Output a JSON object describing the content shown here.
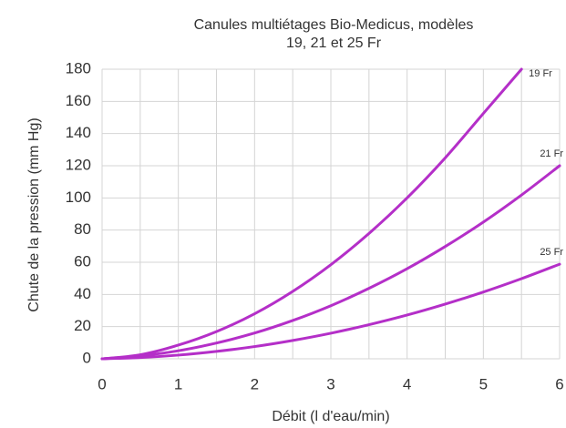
{
  "chart_data": {
    "type": "line",
    "title": [
      "Canules multiétages Bio-Medicus, modèles",
      "19, 21 et 25 Fr"
    ],
    "xlabel": "Débit (l d'eau/min)",
    "ylabel": "Chute de la pression (mm Hg)",
    "x": [
      0,
      0.5,
      1,
      1.5,
      2,
      2.5,
      3,
      3.5,
      4,
      4.5,
      5,
      5.5,
      6
    ],
    "series": [
      {
        "name": "19 Fr",
        "color": "#b42fc8",
        "values": [
          0,
          2.5,
          8.5,
          16.9,
          28,
          41.9,
          58.5,
          77.9,
          100,
          124.9,
          152.5,
          180,
          null
        ]
      },
      {
        "name": "21 Fr",
        "color": "#b42fc8",
        "values": [
          0,
          1.8,
          5,
          9.8,
          16,
          23.8,
          33,
          43.8,
          56,
          69.8,
          85,
          101.8,
          120
        ]
      },
      {
        "name": "25 Fr",
        "color": "#b42fc8",
        "values": [
          0,
          0.8,
          2.3,
          4.6,
          7.6,
          11.4,
          15.9,
          21.2,
          27.2,
          34,
          41.5,
          49.8,
          58.8
        ]
      }
    ],
    "xlim": [
      0,
      6
    ],
    "xticks": [
      0,
      1,
      2,
      3,
      4,
      5,
      6
    ],
    "x_grid": [
      0,
      0.5,
      1,
      1.5,
      2,
      2.5,
      3,
      3.5,
      4,
      4.5,
      5,
      5.5,
      6
    ],
    "ylim": [
      0,
      180
    ],
    "yticks": [
      0,
      20,
      40,
      60,
      80,
      100,
      120,
      140,
      160,
      180
    ],
    "grid": true
  }
}
